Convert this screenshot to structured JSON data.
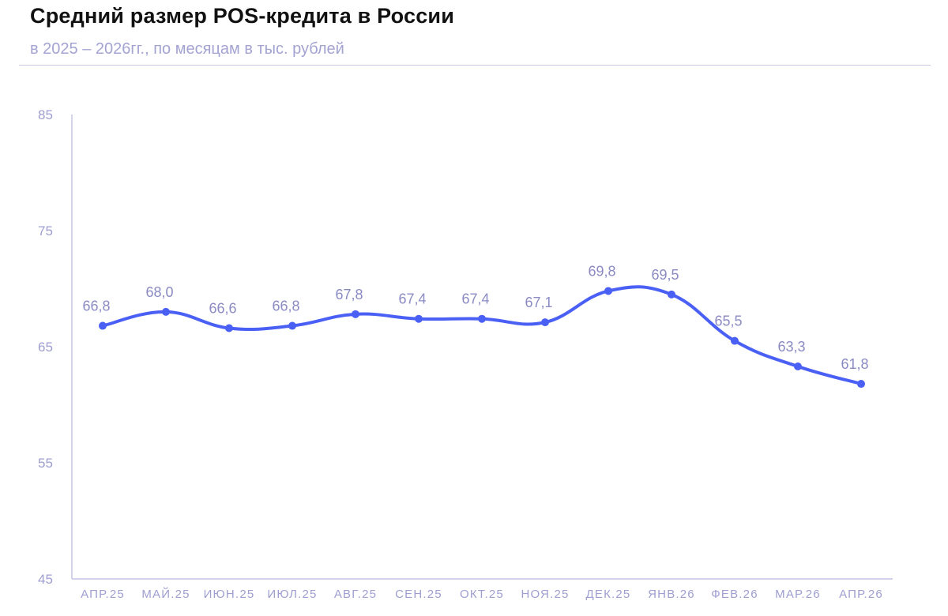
{
  "title": "Средний размер POS-кредита в России",
  "subtitle": "в 2025 – 2026гг., по месяцам в тыс. рублей",
  "colors": {
    "line": "#4a60f5",
    "axis": "#b8b8e0",
    "label": "#8b8bc4"
  },
  "chart_data": {
    "type": "line",
    "title": "Средний размер POS-кредита в России",
    "subtitle": "в 2025 – 2026гг., по месяцам в тыс. рублей",
    "categories": [
      "АПР.25",
      "МАЙ.25",
      "ИЮН.25",
      "ИЮЛ.25",
      "АВГ.25",
      "СЕН.25",
      "ОКТ.25",
      "НОЯ.25",
      "ДЕК.25",
      "ЯНВ.26",
      "ФЕВ.26",
      "МАР.26",
      "АПР.26"
    ],
    "values": [
      66.8,
      68.0,
      66.6,
      66.8,
      67.8,
      67.4,
      67.4,
      67.1,
      69.8,
      69.5,
      65.5,
      63.3,
      61.8
    ],
    "data_labels": [
      "66,8",
      "68,0",
      "66,6",
      "66,8",
      "67,8",
      "67,4",
      "67,4",
      "67,1",
      "69,8",
      "69,5",
      "65,5",
      "63,3",
      "61,8"
    ],
    "ylim": [
      45,
      85
    ],
    "yticks": [
      "85",
      "75",
      "65",
      "55",
      "45"
    ],
    "grid": false,
    "smooth": true
  }
}
